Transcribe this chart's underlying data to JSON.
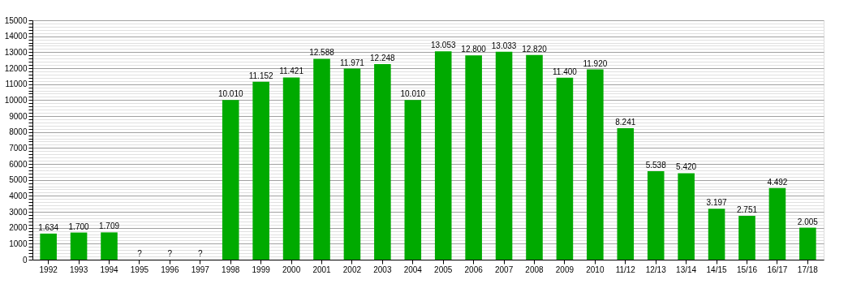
{
  "chart_data": {
    "type": "bar",
    "categories": [
      "1992",
      "1993",
      "1994",
      "1995",
      "1996",
      "1997",
      "1998",
      "1999",
      "2000",
      "2001",
      "2002",
      "2003",
      "2004",
      "2005",
      "2006",
      "2007",
      "2008",
      "2009",
      "2010",
      "11/12",
      "12/13",
      "13/14",
      "14/15",
      "15/16",
      "16/17",
      "17/18"
    ],
    "values": [
      1634,
      1700,
      1709,
      null,
      null,
      null,
      10010,
      11152,
      11421,
      12588,
      11971,
      12248,
      10010,
      13053,
      12800,
      13033,
      12820,
      11400,
      11920,
      8241,
      5538,
      5420,
      3197,
      2751,
      4492,
      2005
    ],
    "value_labels": [
      "1.634",
      "1.700",
      "1.709",
      "?",
      "?",
      "?",
      "10.010",
      "11.152",
      "11.421",
      "12.588",
      "11.971",
      "12.248",
      "10.010",
      "13.053",
      "12.800",
      "13.033",
      "12.820",
      "11.400",
      "11.920",
      "8.241",
      "5.538",
      "5.420",
      "3.197",
      "2.751",
      "4.492",
      "2.005"
    ],
    "color": "#00aa00",
    "ylim": [
      0,
      15000
    ],
    "yticks": [
      0,
      {
        "value": 200,
        "label": null
      },
      {
        "value": 400,
        "label": null
      },
      {
        "value": 600,
        "label": null
      },
      {
        "value": 800,
        "label": null
      },
      1000,
      {
        "value": 1200,
        "label": null
      },
      {
        "value": 1400,
        "label": null
      },
      {
        "value": 1600,
        "label": null
      },
      {
        "value": 1800,
        "label": null
      },
      2000,
      {
        "value": 2200,
        "label": null
      },
      {
        "value": 2400,
        "label": null
      },
      {
        "value": 2600,
        "label": null
      },
      {
        "value": 2800,
        "label": null
      },
      3000,
      {
        "value": 3200,
        "label": null
      },
      {
        "value": 3400,
        "label": null
      },
      {
        "value": 3600,
        "label": null
      },
      {
        "value": 3800,
        "label": null
      },
      4000,
      {
        "value": 4200,
        "label": null
      },
      {
        "value": 4400,
        "label": null
      },
      {
        "value": 4600,
        "label": null
      },
      {
        "value": 4800,
        "label": null
      },
      5000,
      {
        "value": 5200,
        "label": null
      },
      {
        "value": 5400,
        "label": null
      },
      {
        "value": 5600,
        "label": null
      },
      {
        "value": 5800,
        "label": null
      },
      6000,
      {
        "value": 6200,
        "label": null
      },
      {
        "value": 6400,
        "label": null
      },
      {
        "value": 6600,
        "label": null
      },
      {
        "value": 6800,
        "label": null
      },
      7000,
      {
        "value": 7200,
        "label": null
      },
      {
        "value": 7400,
        "label": null
      },
      {
        "value": 7600,
        "label": null
      },
      {
        "value": 7800,
        "label": null
      },
      8000,
      {
        "value": 8200,
        "label": null
      },
      {
        "value": 8400,
        "label": null
      },
      {
        "value": 8600,
        "label": null
      },
      {
        "value": 8800,
        "label": null
      },
      9000,
      {
        "value": 9200,
        "label": null
      },
      {
        "value": 9400,
        "label": null
      },
      {
        "value": 9600,
        "label": null
      },
      {
        "value": 9800,
        "label": null
      },
      10000,
      {
        "value": 10200,
        "label": null
      },
      {
        "value": 10400,
        "label": null
      },
      {
        "value": 10600,
        "label": null
      },
      {
        "value": 10800,
        "label": null
      },
      11000,
      {
        "value": 11200,
        "label": null
      },
      {
        "value": 11400,
        "label": null
      },
      {
        "value": 11600,
        "label": null
      },
      {
        "value": 11800,
        "label": null
      },
      12000,
      {
        "value": 12200,
        "label": null
      },
      {
        "value": 12400,
        "label": null
      },
      {
        "value": 12600,
        "label": null
      },
      {
        "value": 12800,
        "label": null
      },
      13000,
      {
        "value": 13200,
        "label": null
      },
      {
        "value": 13400,
        "label": null
      },
      {
        "value": 13600,
        "label": null
      },
      {
        "value": 13800,
        "label": null
      },
      14000,
      {
        "value": 14200,
        "label": null
      },
      {
        "value": 14400,
        "label": null
      },
      {
        "value": 14600,
        "label": null
      },
      {
        "value": 14800,
        "label": null
      },
      15000
    ],
    "grid": "y"
  }
}
